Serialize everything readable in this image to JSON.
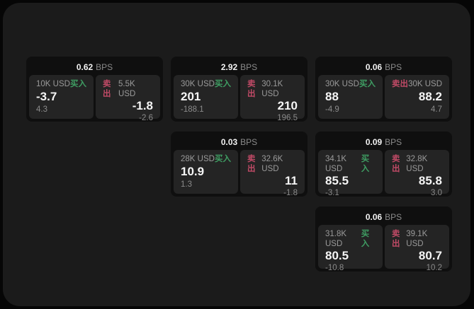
{
  "labels": {
    "bps": "BPS",
    "buy": "买入",
    "sell": "卖出"
  },
  "colors": {
    "page_bg": "#060606",
    "container_bg": "#1b1b1b",
    "card_bg": "#0f0f0f",
    "panel_bg": "#242424",
    "text_muted": "#8b8b8b",
    "text_bright": "#f5f5f5",
    "buy_green": "#3f9e63",
    "sell_red": "#c04a66"
  },
  "cards": [
    {
      "row": 1,
      "col": 1,
      "bps": "0.62",
      "buy": {
        "size": "10K USD",
        "value": "-3.7",
        "change": "4.3"
      },
      "sell": {
        "size": "5.5K USD",
        "value": "-1.8",
        "change": "-2.6"
      }
    },
    {
      "row": 1,
      "col": 2,
      "bps": "2.92",
      "buy": {
        "size": "30K USD",
        "value": "201",
        "change": "-188.1"
      },
      "sell": {
        "size": "30.1K USD",
        "value": "210",
        "change": "196.5"
      }
    },
    {
      "row": 1,
      "col": 3,
      "bps": "0.06",
      "buy": {
        "size": "30K USD",
        "value": "88",
        "change": "-4.9"
      },
      "sell": {
        "size": "30K USD",
        "value": "88.2",
        "change": "4.7"
      }
    },
    {
      "row": 2,
      "col": 2,
      "bps": "0.03",
      "buy": {
        "size": "28K USD",
        "value": "10.9",
        "change": "1.3"
      },
      "sell": {
        "size": "32.6K USD",
        "value": "11",
        "change": "-1.8"
      }
    },
    {
      "row": 2,
      "col": 3,
      "bps": "0.09",
      "buy": {
        "size": "34.1K USD",
        "value": "85.5",
        "change": "-3.1"
      },
      "sell": {
        "size": "32.8K USD",
        "value": "85.8",
        "change": "3.0"
      }
    },
    {
      "row": 3,
      "col": 3,
      "bps": "0.06",
      "buy": {
        "size": "31.8K USD",
        "value": "80.5",
        "change": "-10.8"
      },
      "sell": {
        "size": "39.1K USD",
        "value": "80.7",
        "change": "10.2"
      }
    }
  ]
}
